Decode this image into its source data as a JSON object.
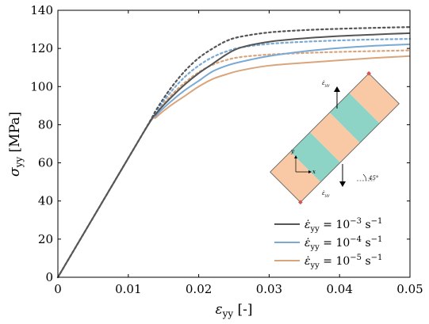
{
  "chart_data": {
    "type": "line",
    "xlabel": "ε",
    "xlabel_sub": "yy",
    "xlabel_unit": " [-]",
    "ylabel": "σ",
    "ylabel_sub": "yy",
    "ylabel_unit": " [MPa]",
    "xlim": [
      0,
      0.05
    ],
    "ylim": [
      0,
      140
    ],
    "xticks": [
      0,
      0.01,
      0.02,
      0.03,
      0.04,
      0.05
    ],
    "xtick_labels": [
      "0",
      "0.01",
      "0.02",
      "0.03",
      "0.04",
      "0.05"
    ],
    "yticks": [
      0,
      20,
      40,
      60,
      80,
      100,
      120,
      140
    ],
    "ytick_labels": [
      "0",
      "20",
      "40",
      "60",
      "80",
      "100",
      "120",
      "140"
    ],
    "legend_position": "bottom-right",
    "legend_prefix": "ε̇",
    "legend_sub": "yy",
    "legend_base": " = 10",
    "legend_unit": " s",
    "legend_unit_exp": "−1",
    "series": [
      {
        "name": "10^-3",
        "legend_exp": "−3",
        "color": "#555555",
        "solid": [
          [
            0,
            0
          ],
          [
            0.012,
            75
          ],
          [
            0.014,
            86
          ],
          [
            0.016,
            94
          ],
          [
            0.018,
            101
          ],
          [
            0.02,
            107
          ],
          [
            0.022,
            112
          ],
          [
            0.024,
            117
          ],
          [
            0.026,
            120.5
          ],
          [
            0.03,
            123.5
          ],
          [
            0.035,
            125.3
          ],
          [
            0.04,
            126.5
          ],
          [
            0.045,
            127.3
          ],
          [
            0.05,
            128
          ]
        ],
        "dotted": [
          [
            0,
            0
          ],
          [
            0.012,
            75
          ],
          [
            0.014,
            88
          ],
          [
            0.016,
            99
          ],
          [
            0.018,
            108
          ],
          [
            0.02,
            115
          ],
          [
            0.022,
            120
          ],
          [
            0.024,
            124
          ],
          [
            0.026,
            126.2
          ],
          [
            0.03,
            128.4
          ],
          [
            0.035,
            129.6
          ],
          [
            0.04,
            130.3
          ],
          [
            0.045,
            130.8
          ],
          [
            0.05,
            131.2
          ]
        ]
      },
      {
        "name": "10^-4",
        "legend_exp": "−4",
        "color": "#7aa9d4",
        "solid": [
          [
            0,
            0
          ],
          [
            0.012,
            75
          ],
          [
            0.014,
            85
          ],
          [
            0.016,
            92
          ],
          [
            0.018,
            98
          ],
          [
            0.02,
            103
          ],
          [
            0.022,
            108
          ],
          [
            0.024,
            111
          ],
          [
            0.026,
            113
          ],
          [
            0.03,
            116
          ],
          [
            0.035,
            118.5
          ],
          [
            0.04,
            120.2
          ],
          [
            0.045,
            121.4
          ],
          [
            0.05,
            122.2
          ]
        ],
        "dotted": [
          [
            0,
            0
          ],
          [
            0.012,
            75
          ],
          [
            0.014,
            87
          ],
          [
            0.016,
            97
          ],
          [
            0.018,
            105
          ],
          [
            0.02,
            111
          ],
          [
            0.022,
            115.5
          ],
          [
            0.024,
            118.5
          ],
          [
            0.026,
            120.5
          ],
          [
            0.03,
            122.4
          ],
          [
            0.035,
            123.5
          ],
          [
            0.04,
            124.2
          ],
          [
            0.045,
            124.7
          ],
          [
            0.05,
            125
          ]
        ]
      },
      {
        "name": "10^-5",
        "legend_exp": "−5",
        "color": "#d9a57c",
        "solid": [
          [
            0,
            0
          ],
          [
            0.012,
            75
          ],
          [
            0.014,
            84
          ],
          [
            0.016,
            90
          ],
          [
            0.018,
            95
          ],
          [
            0.02,
            100
          ],
          [
            0.022,
            104
          ],
          [
            0.024,
            106.5
          ],
          [
            0.026,
            108.5
          ],
          [
            0.03,
            111
          ],
          [
            0.035,
            112.5
          ],
          [
            0.04,
            113.8
          ],
          [
            0.045,
            115
          ],
          [
            0.05,
            116
          ]
        ],
        "dotted": [
          [
            0,
            0
          ],
          [
            0.012,
            75
          ],
          [
            0.014,
            86
          ],
          [
            0.016,
            95
          ],
          [
            0.018,
            102
          ],
          [
            0.02,
            107.5
          ],
          [
            0.022,
            111.5
          ],
          [
            0.024,
            114
          ],
          [
            0.026,
            115.5
          ],
          [
            0.03,
            116.8
          ],
          [
            0.035,
            117.6
          ],
          [
            0.04,
            118.2
          ],
          [
            0.045,
            118.6
          ],
          [
            0.05,
            119
          ]
        ]
      }
    ],
    "inset": {
      "top_label": "ε̇",
      "top_label_sub": "yy",
      "bottom_label": "ε̇",
      "bottom_label_sub": "yy",
      "axis_y": "y",
      "axis_x": "x",
      "angle_label": "45°",
      "color_teal": "#8ed4c6",
      "color_peach": "#f9c9a5"
    }
  }
}
